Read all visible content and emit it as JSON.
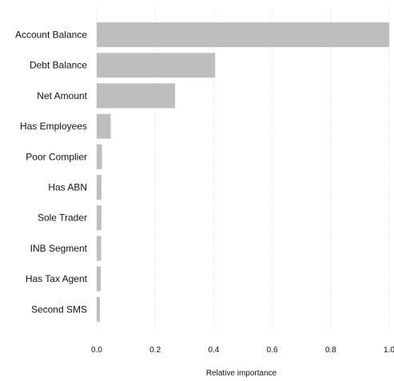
{
  "chart_data": {
    "type": "bar",
    "orientation": "horizontal",
    "title": "",
    "xlabel": "Relative importance",
    "ylabel": "",
    "xlim": [
      0,
      1
    ],
    "xticks": [
      0,
      0.2,
      0.4,
      0.6,
      0.8,
      1
    ],
    "xtick_labels": [
      "0.0",
      "0.2",
      "0.4",
      "0.6",
      "0.8",
      "1.0"
    ],
    "grid": "vertical dotted",
    "bar_color": "#bebebe",
    "grid_color": "#dddddd",
    "categories": [
      "Account Balance",
      "Debt Balance",
      "Net Amount",
      "Has Employees",
      "Poor Complier",
      "Has ABN",
      "Sole Trader",
      "INB Segment",
      "Has Tax Agent",
      "Second SMS"
    ],
    "values": [
      1.0,
      0.405,
      0.268,
      0.048,
      0.018,
      0.016,
      0.016,
      0.015,
      0.014,
      0.011
    ]
  }
}
